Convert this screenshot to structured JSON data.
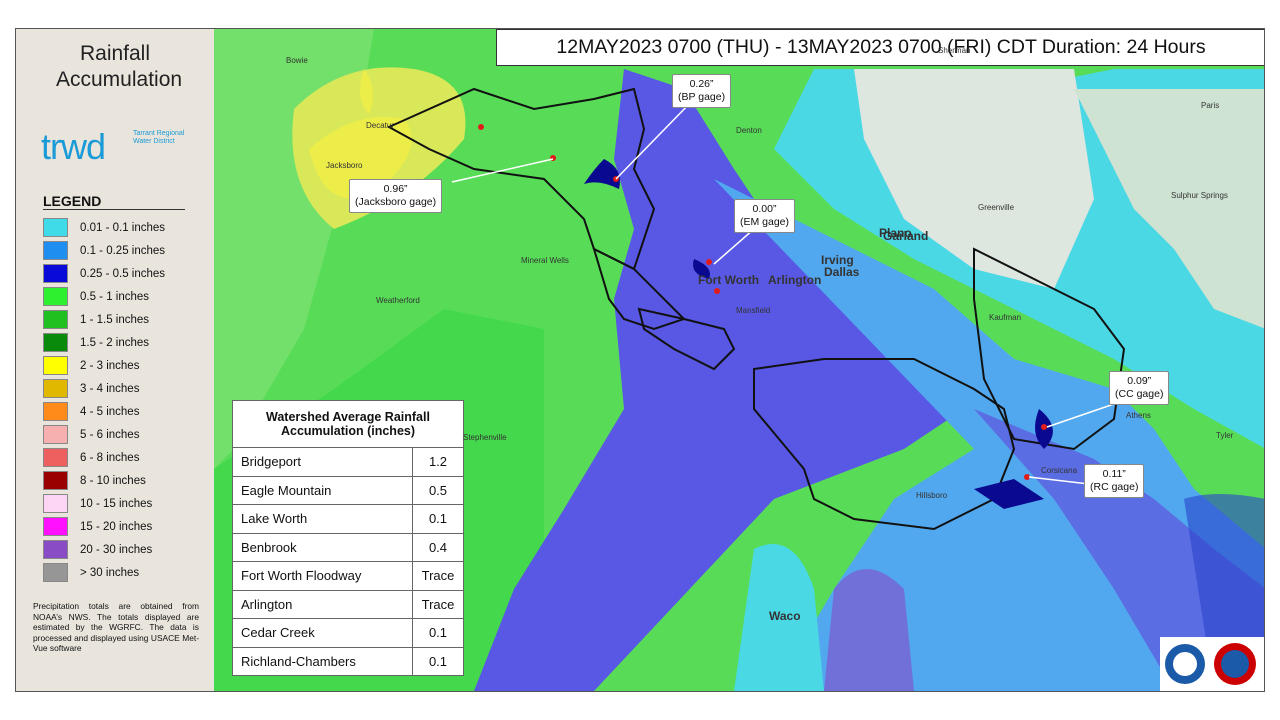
{
  "sidebar": {
    "title": "Rainfall Accumulation",
    "logo": {
      "mark": "trwd",
      "org": "Tarrant Regional Water District"
    },
    "legend_title": "LEGEND",
    "legend": [
      {
        "label": "0.01 - 0.1 inches",
        "color": "#3fdbe8"
      },
      {
        "label": "0.1 - 0.25 inches",
        "color": "#1e8ff0"
      },
      {
        "label": "0.25 - 0.5 inches",
        "color": "#0a0ad8"
      },
      {
        "label": "0.5 - 1 inches",
        "color": "#2ef02e"
      },
      {
        "label": "1 - 1.5 inches",
        "color": "#20c020"
      },
      {
        "label": "1.5 - 2 inches",
        "color": "#0a8a0a"
      },
      {
        "label": "2 - 3 inches",
        "color": "#ffff00"
      },
      {
        "label": "3 - 4 inches",
        "color": "#e0b800"
      },
      {
        "label": "4 - 5 inches",
        "color": "#ff8c1a"
      },
      {
        "label": "5 - 6 inches",
        "color": "#f7b0b0"
      },
      {
        "label": "6 - 8 inches",
        "color": "#ee6060"
      },
      {
        "label": "8 - 10 inches",
        "color": "#9a0000"
      },
      {
        "label": "10 - 15 inches",
        "color": "#fcd6f4"
      },
      {
        "label": "15 - 20 inches",
        "color": "#ff10ff"
      },
      {
        "label": "20 - 30 inches",
        "color": "#8a4cc4"
      },
      {
        "label": "> 30 inches",
        "color": "#969696"
      }
    ],
    "note": "Precipitation totals are obtained from NOAA’s NWS. The totals displayed are estimated by the WGRFC. The data is processed and displayed using USACE Met-Vue software"
  },
  "header": {
    "title": "12MAY2023 0700 (THU) - 13MAY2023 0700 (FRI) CDT Duration: 24 Hours"
  },
  "gages": [
    {
      "value": "0.96”",
      "name": "(Jacksboro gage)"
    },
    {
      "value": "0.26”",
      "name": "(BP gage)"
    },
    {
      "value": "0.00”",
      "name": "(EM gage)"
    },
    {
      "value": "0.09”",
      "name": "(CC gage)"
    },
    {
      "value": "0.11”",
      "name": "(RC gage)"
    }
  ],
  "table": {
    "title": "Watershed Average Rainfall Accumulation (inches)",
    "rows": [
      [
        "Bridgeport",
        "1.2"
      ],
      [
        "Eagle Mountain",
        "0.5"
      ],
      [
        "Lake Worth",
        "0.1"
      ],
      [
        "Benbrook",
        "0.4"
      ],
      [
        "Fort Worth Floodway",
        "Trace"
      ],
      [
        "Arlington",
        "Trace"
      ],
      [
        "Cedar Creek",
        "0.1"
      ],
      [
        "Richland-Chambers",
        "0.1"
      ]
    ]
  },
  "map_labels": [
    "Fort Worth",
    "Arlington",
    "Dallas",
    "Plano",
    "Garland",
    "Irving",
    "Mansfield",
    "Waco",
    "Denton",
    "Sherman",
    "Greenville",
    "Kaufman",
    "Corsicana",
    "Hillsboro",
    "Stephenville",
    "Mineral Wells",
    "Jacksboro",
    "Bowie",
    "Decatur",
    "Weatherford",
    "Athens",
    "Tyler",
    "Sulphur Springs",
    "Paris"
  ]
}
